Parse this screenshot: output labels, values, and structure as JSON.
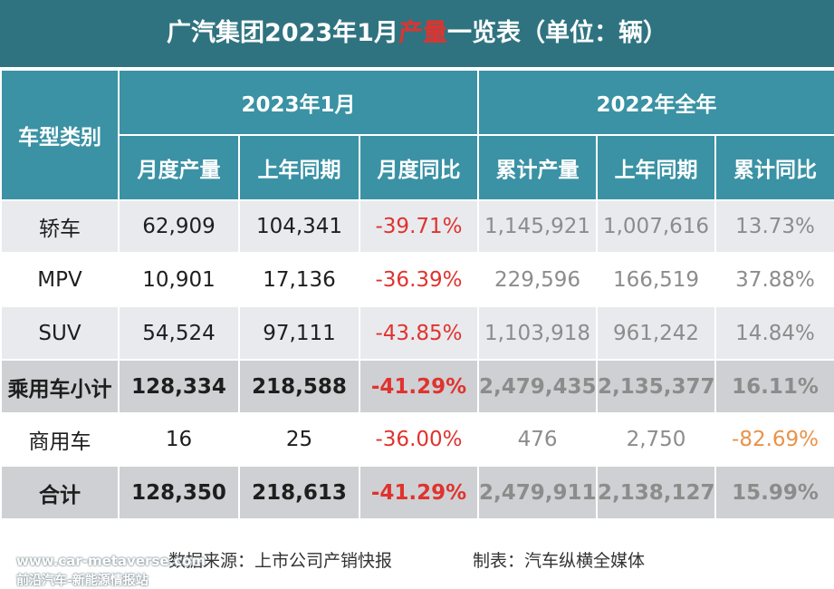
{
  "title": {
    "part1": "广汽集团2023年1月",
    "highlight": "产量",
    "part2": "一览表（单位：辆）"
  },
  "header": {
    "category": "车型类别",
    "group_2023": "2023年1月",
    "group_2022": "2022年全年",
    "columns": [
      "月度产量",
      "上年同期",
      "月度同比",
      "累计产量",
      "上年同期",
      "累计同比"
    ]
  },
  "rows": [
    {
      "category": "轿车",
      "values": [
        "62,909",
        "104,341",
        "-39.71%",
        "1,145,921",
        "1,007,616",
        "13.73%"
      ]
    },
    {
      "category": "MPV",
      "values": [
        "10,901",
        "17,136",
        "-36.39%",
        "229,596",
        "166,519",
        "37.88%"
      ]
    },
    {
      "category": "SUV",
      "values": [
        "54,524",
        "97,111",
        "-43.85%",
        "1,103,918",
        "961,242",
        "14.84%"
      ]
    },
    {
      "category": "乘用车小计",
      "values": [
        "128,334",
        "218,588",
        "-41.29%",
        "2,479,435",
        "2,135,377",
        "16.11%"
      ]
    },
    {
      "category": "商用车",
      "values": [
        "16",
        "25",
        "-36.00%",
        "476",
        "2,750",
        "-82.69%"
      ]
    },
    {
      "category": "合计",
      "values": [
        "128,350",
        "218,613",
        "-41.29%",
        "2,479,911",
        "2,138,127",
        "15.99%"
      ]
    }
  ],
  "colors": {
    "header_bg": "#3a92a4",
    "title_bg": "#2f7380",
    "negative": "#e0332e",
    "negative_alt": "#e8934a"
  },
  "footer": {
    "source": "数据来源：上市公司产销快报",
    "made_by": "制表：汽车纵横全媒体"
  },
  "watermark": {
    "url": "www.car-metaverse.com",
    "name": "前沿汽车-新能源情报站"
  }
}
